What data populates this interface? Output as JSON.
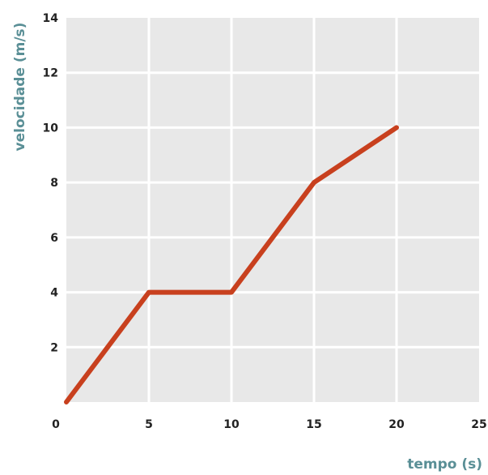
{
  "chart_data": {
    "type": "line",
    "xlabel": "tempo (s)",
    "ylabel": "velocidade (m/s)",
    "xlim": [
      0,
      25
    ],
    "ylim": [
      0,
      14
    ],
    "xticks": [
      "0",
      "5",
      "10",
      "15",
      "20",
      "25"
    ],
    "yticks": [
      "2",
      "4",
      "6",
      "8",
      "10",
      "12",
      "14"
    ],
    "grid": true,
    "series": [
      {
        "x": [
          0,
          5,
          10,
          15,
          20
        ],
        "y": [
          0,
          4,
          4,
          8,
          10
        ]
      }
    ]
  },
  "colors": {
    "plot_background": "#e8e8e8",
    "grid": "#ffffff",
    "line": "#c8401e",
    "axis_title": "#5a8f96",
    "tick_text": "#222222"
  }
}
